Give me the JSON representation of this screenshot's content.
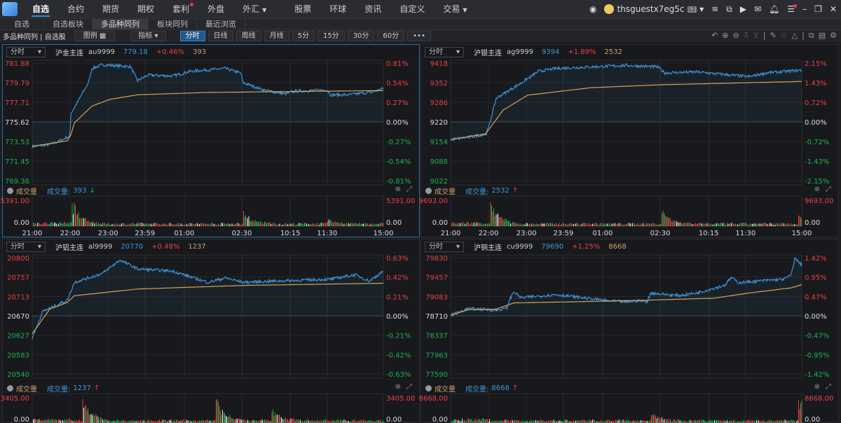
{
  "topbar": {
    "nav": [
      {
        "label": "自选",
        "active": true
      },
      {
        "label": "合约"
      },
      {
        "label": "期货"
      },
      {
        "label": "期权"
      },
      {
        "label": "套利",
        "dot": true
      },
      {
        "label": "外盘"
      },
      {
        "label": "外汇",
        "caret": true
      },
      {
        "label": "股票"
      },
      {
        "label": "环球"
      },
      {
        "label": "资讯"
      },
      {
        "label": "自定义"
      },
      {
        "label": "交易",
        "caret": true
      }
    ],
    "username": "thsguestx7eg5c",
    "level_badge": "L2"
  },
  "subtabs": [
    {
      "label": "自选"
    },
    {
      "label": "自选板块"
    },
    {
      "label": "多品种同列",
      "active": true
    },
    {
      "label": "板块同列"
    },
    {
      "label": "最近浏览"
    }
  ],
  "toolbar": {
    "label": "多品种同列 | 自选股",
    "legend": "图例 ▦",
    "indicator": "指标 ▾",
    "periods": [
      {
        "label": "分时",
        "active": true
      },
      {
        "label": "日线"
      },
      {
        "label": "周线"
      },
      {
        "label": "月线"
      },
      {
        "label": "5分"
      },
      {
        "label": "15分"
      },
      {
        "label": "30分"
      },
      {
        "label": "60分"
      },
      {
        "label": "•••"
      }
    ]
  },
  "colors": {
    "up": "#e84040",
    "down": "#1db34c",
    "price_line": "#3d95d8",
    "avg_line": "#d6a256",
    "accent": "#2e8fe0"
  },
  "volume_header": {
    "title": "成交量",
    "label": "成交量:"
  },
  "time_labels": [
    "21:00",
    "22:00",
    "23:00",
    "23:59",
    "01:00",
    "02:30",
    "10:15",
    "11:30",
    "15:00"
  ],
  "panels": [
    {
      "period": "分时",
      "name": "沪金主连",
      "code": "au9999",
      "price": "779.18",
      "change": "+0.46%",
      "volume": "393",
      "vol_dir": "down",
      "vol_max": "5391.00",
      "vol_min": "0.00",
      "y_labels": [
        "781.88",
        "779.79",
        "777.71",
        "775.62",
        "773.53",
        "771.45",
        "769.36"
      ],
      "pct_labels": [
        "0.81%",
        "0.54%",
        "0.27%",
        "0.00%",
        "-0.27%",
        "-0.54%",
        "-0.81%"
      ],
      "price_series": [
        [
          0,
          773.0
        ],
        [
          0.05,
          773.2
        ],
        [
          0.08,
          773.6
        ],
        [
          0.1,
          774.0
        ],
        [
          0.107,
          774.0
        ],
        [
          0.11,
          776.5
        ],
        [
          0.13,
          777.8
        ],
        [
          0.16,
          779.8
        ],
        [
          0.17,
          781.3
        ],
        [
          0.2,
          781.7
        ],
        [
          0.28,
          781.5
        ],
        [
          0.3,
          780.0
        ],
        [
          0.33,
          780.6
        ],
        [
          0.4,
          780.5
        ],
        [
          0.45,
          781.0
        ],
        [
          0.55,
          781.3
        ],
        [
          0.595,
          780.8
        ],
        [
          0.6,
          779.8
        ],
        [
          0.66,
          779.0
        ],
        [
          0.72,
          778.6
        ],
        [
          0.75,
          778.9
        ],
        [
          0.84,
          779.0
        ],
        [
          0.85,
          778.5
        ],
        [
          0.9,
          778.5
        ],
        [
          0.97,
          778.8
        ],
        [
          1,
          779.18
        ]
      ],
      "avg_series": [
        [
          0,
          773.0
        ],
        [
          0.1,
          773.6
        ],
        [
          0.108,
          774.0
        ],
        [
          0.12,
          775.5
        ],
        [
          0.17,
          777.3
        ],
        [
          0.22,
          778.0
        ],
        [
          0.3,
          778.5
        ],
        [
          0.5,
          778.75
        ],
        [
          1,
          778.95
        ]
      ],
      "vol_peaks": [
        [
          0.11,
          1
        ],
        [
          0.6,
          0.45
        ],
        [
          0.84,
          0.2
        ]
      ]
    },
    {
      "period": "分时",
      "name": "沪银主连",
      "code": "ag9999",
      "price": "9394",
      "change": "+1.89%",
      "volume": "2532",
      "vol_dir": "up",
      "vol_max": "9693.00",
      "vol_min": "0.00",
      "y_labels": [
        "9418",
        "9352",
        "9286",
        "9220",
        "9154",
        "9088",
        "9022"
      ],
      "pct_labels": [
        "2.15%",
        "1.43%",
        "0.72%",
        "0.00%",
        "-0.72%",
        "-1.43%",
        "-2.15%"
      ],
      "price_series": [
        [
          0,
          9160
        ],
        [
          0.06,
          9170
        ],
        [
          0.1,
          9178
        ],
        [
          0.108,
          9200
        ],
        [
          0.13,
          9300
        ],
        [
          0.2,
          9350
        ],
        [
          0.25,
          9390
        ],
        [
          0.3,
          9400
        ],
        [
          0.4,
          9405
        ],
        [
          0.5,
          9410
        ],
        [
          0.59,
          9405
        ],
        [
          0.61,
          9385
        ],
        [
          0.7,
          9388
        ],
        [
          0.85,
          9372
        ],
        [
          0.9,
          9385
        ],
        [
          1,
          9394
        ]
      ],
      "avg_series": [
        [
          0,
          9160
        ],
        [
          0.1,
          9180
        ],
        [
          0.15,
          9260
        ],
        [
          0.22,
          9310
        ],
        [
          0.4,
          9335
        ],
        [
          0.6,
          9345
        ],
        [
          1,
          9356
        ]
      ],
      "vol_peaks": [
        [
          0.11,
          0.9
        ],
        [
          0.6,
          0.55
        ],
        [
          0.99,
          0.35
        ]
      ]
    },
    {
      "period": "分时",
      "name": "沪铝主连",
      "code": "al9999",
      "price": "20770",
      "change": "+0.48%",
      "volume": "1237",
      "vol_dir": "up",
      "vol_max": "3405.00",
      "vol_min": "0.00",
      "y_labels": [
        "20800",
        "20757",
        "20713",
        "20670",
        "20627",
        "20583",
        "20540"
      ],
      "pct_labels": [
        "0.63%",
        "0.42%",
        "0.21%",
        "0.00%",
        "-0.21%",
        "-0.42%",
        "-0.63%"
      ],
      "price_series": [
        [
          0,
          20620
        ],
        [
          0.03,
          20680
        ],
        [
          0.1,
          20705
        ],
        [
          0.12,
          20745
        ],
        [
          0.2,
          20765
        ],
        [
          0.25,
          20795
        ],
        [
          0.3,
          20775
        ],
        [
          0.4,
          20770
        ],
        [
          0.5,
          20745
        ],
        [
          0.55,
          20755
        ],
        [
          0.6,
          20745
        ],
        [
          0.7,
          20748
        ],
        [
          0.85,
          20752
        ],
        [
          0.92,
          20762
        ],
        [
          0.96,
          20748
        ],
        [
          1,
          20770
        ]
      ],
      "avg_series": [
        [
          0,
          20630
        ],
        [
          0.05,
          20685
        ],
        [
          0.1,
          20700
        ],
        [
          0.12,
          20715
        ],
        [
          0.3,
          20730
        ],
        [
          0.6,
          20738
        ],
        [
          1,
          20743
        ]
      ],
      "vol_peaks": [
        [
          0.14,
          1
        ],
        [
          0.52,
          0.95
        ],
        [
          0.68,
          0.5
        ]
      ]
    },
    {
      "period": "分时",
      "name": "沪铜主连",
      "code": "cu9999",
      "price": "79690",
      "change": "+1.25%",
      "volume": "8668",
      "vol_dir": "up",
      "vol_max": "8668.00",
      "vol_min": "0.00",
      "y_labels": [
        "79830",
        "79457",
        "79083",
        "78710",
        "78337",
        "77963",
        "77590"
      ],
      "pct_labels": [
        "1.42%",
        "0.95%",
        "0.47%",
        "0.00%",
        "-0.47%",
        "-0.95%",
        "-1.42%"
      ],
      "price_series": [
        [
          0,
          78720
        ],
        [
          0.05,
          78850
        ],
        [
          0.13,
          78820
        ],
        [
          0.16,
          78860
        ],
        [
          0.17,
          79050
        ],
        [
          0.18,
          79180
        ],
        [
          0.2,
          79060
        ],
        [
          0.3,
          79120
        ],
        [
          0.45,
          79000
        ],
        [
          0.5,
          78980
        ],
        [
          0.53,
          79000
        ],
        [
          0.56,
          78990
        ],
        [
          0.57,
          79150
        ],
        [
          0.65,
          79100
        ],
        [
          0.7,
          79150
        ],
        [
          0.78,
          79300
        ],
        [
          0.8,
          79450
        ],
        [
          0.82,
          79350
        ],
        [
          0.95,
          79420
        ],
        [
          0.97,
          79500
        ],
        [
          0.98,
          79820
        ],
        [
          1,
          79690
        ]
      ],
      "avg_series": [
        [
          0,
          78720
        ],
        [
          0.05,
          78830
        ],
        [
          0.13,
          78840
        ],
        [
          0.18,
          78960
        ],
        [
          0.5,
          79000
        ],
        [
          0.75,
          79050
        ],
        [
          0.85,
          79150
        ],
        [
          0.97,
          79250
        ],
        [
          1,
          79310
        ]
      ],
      "vol_peaks": [
        [
          0.99,
          1
        ],
        [
          0.57,
          0.3
        ]
      ]
    }
  ]
}
